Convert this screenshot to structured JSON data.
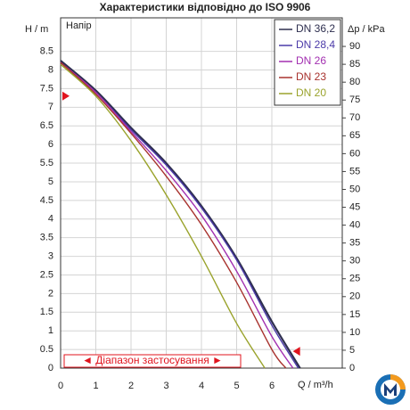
{
  "chart_data": {
    "type": "line",
    "title": "Характеристики відповідно до ISO 9906",
    "y_label": "H / m",
    "y2_label": "Δp / kPa",
    "x_label": "Q / m³/h",
    "inner_label": "Напір",
    "range_label": "◄ Діапазон застосування ►",
    "xlim": [
      0,
      8
    ],
    "xticks": [
      0,
      1,
      2,
      3,
      4,
      5,
      6
    ],
    "ylim": [
      0,
      9.4
    ],
    "yticks": [
      0,
      0.5,
      1,
      1.5,
      2,
      2.5,
      3,
      3.5,
      4,
      4.5,
      5,
      5.5,
      6,
      6.5,
      7,
      7.5,
      8,
      8.5
    ],
    "y2lim": [
      0,
      98
    ],
    "y2ticks": [
      0,
      5,
      10,
      15,
      20,
      25,
      30,
      35,
      40,
      45,
      50,
      55,
      60,
      65,
      70,
      75,
      80,
      85,
      90
    ],
    "grid": true,
    "legend": "upper right",
    "range_markers": [
      {
        "x": 0,
        "y": 7.3
      },
      {
        "x": 6.7,
        "y": 0.45
      }
    ],
    "range_color": "#e0141e",
    "series": [
      {
        "name": "DN 36,2",
        "color": "#2e2f4f",
        "x": [
          0,
          1,
          2,
          3,
          4,
          5,
          6,
          6.8
        ],
        "values": [
          8.25,
          7.45,
          6.45,
          5.5,
          4.35,
          2.95,
          1.25,
          0
        ]
      },
      {
        "name": "DN 28,4",
        "color": "#4b3aa8",
        "x": [
          0,
          1,
          2,
          3,
          4,
          5,
          6,
          6.75
        ],
        "values": [
          8.2,
          7.4,
          6.4,
          5.45,
          4.3,
          2.9,
          1.15,
          0
        ]
      },
      {
        "name": "DN 26",
        "color": "#a22fb0",
        "x": [
          0,
          1,
          2,
          3,
          4,
          5,
          6,
          6.6
        ],
        "values": [
          8.2,
          7.4,
          6.35,
          5.3,
          4.1,
          2.6,
          0.85,
          0
        ]
      },
      {
        "name": "DN 23",
        "color": "#a8322e",
        "x": [
          0,
          1,
          2,
          3,
          4,
          5,
          6,
          6.4
        ],
        "values": [
          8.2,
          7.35,
          6.3,
          5.15,
          3.85,
          2.3,
          0.5,
          0
        ]
      },
      {
        "name": "DN 20",
        "color": "#9aa32c",
        "x": [
          0,
          1,
          2,
          3,
          4,
          5,
          5.8
        ],
        "values": [
          8.15,
          7.3,
          6.1,
          4.65,
          3.0,
          1.2,
          0
        ]
      }
    ]
  }
}
